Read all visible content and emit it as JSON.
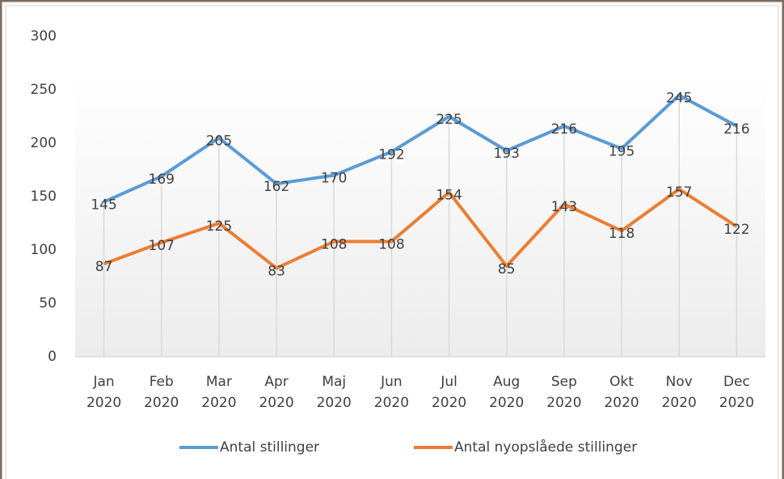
{
  "chart_data": {
    "type": "line",
    "categories": [
      "Jan 2020",
      "Feb 2020",
      "Mar 2020",
      "Apr 2020",
      "Maj 2020",
      "Jun 2020",
      "Jul 2020",
      "Aug 2020",
      "Sep 2020",
      "Okt 2020",
      "Nov 2020",
      "Dec 2020"
    ],
    "series": [
      {
        "name": "Antal stillinger",
        "color": "#5b9bd5",
        "values": [
          145,
          169,
          205,
          162,
          170,
          192,
          225,
          193,
          216,
          195,
          245,
          216
        ]
      },
      {
        "name": "Antal nyopslåede stillinger",
        "color": "#ed7d31",
        "values": [
          87,
          107,
          125,
          83,
          108,
          108,
          154,
          85,
          143,
          118,
          157,
          122
        ]
      }
    ],
    "ylim": [
      0,
      300
    ],
    "yticks": [
      0,
      50,
      100,
      150,
      200,
      250,
      300
    ],
    "data_labels": true,
    "drop_lines": true,
    "legend": "bottom"
  }
}
